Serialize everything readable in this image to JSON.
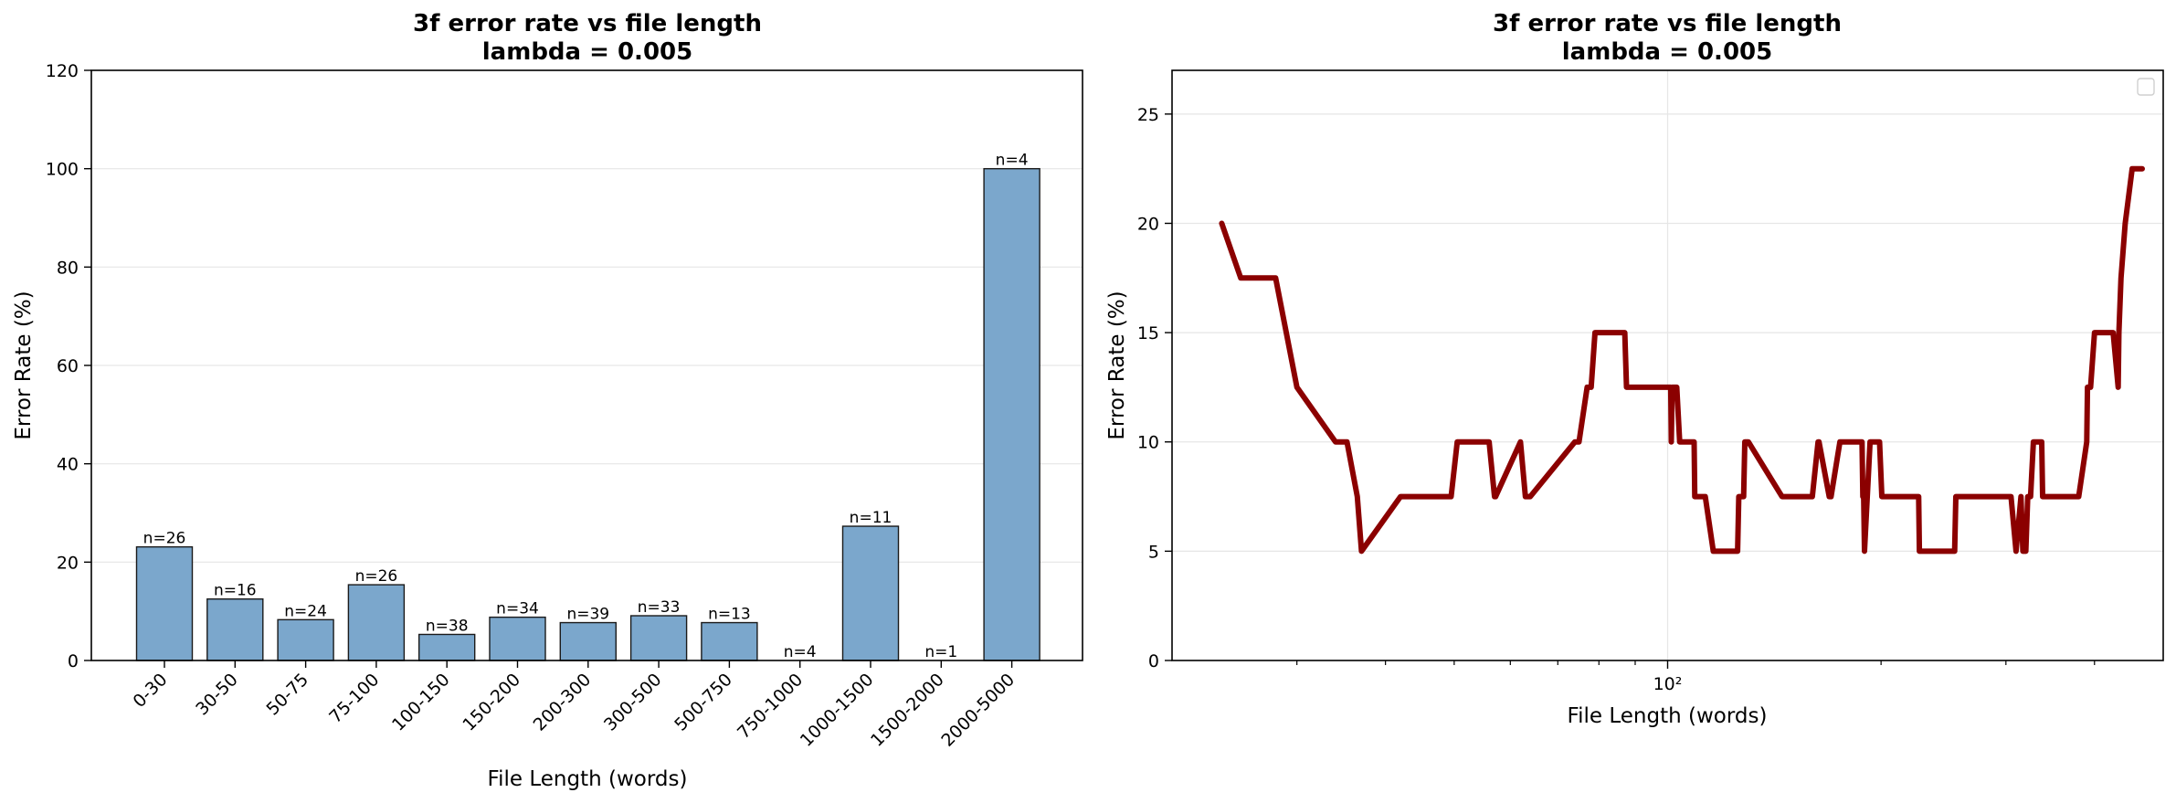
{
  "chart_data": [
    {
      "type": "bar",
      "title": "3f error rate vs file length",
      "subtitle": "lambda = 0.005",
      "xlabel": "File Length (words)",
      "ylabel": "Error Rate (%)",
      "ylim": [
        0,
        120
      ],
      "yticks": [
        "0",
        "20",
        "40",
        "60",
        "80",
        "100",
        "120"
      ],
      "grid": true,
      "bar_color": "#7ba7cc",
      "edge_color": "#1a1a1a",
      "categories": [
        "0-30",
        "30-50",
        "50-75",
        "75-100",
        "100-150",
        "150-200",
        "200-300",
        "300-500",
        "500-750",
        "750-1000",
        "1000-1500",
        "1500-2000",
        "2000-5000"
      ],
      "values": [
        23.1,
        12.5,
        8.3,
        15.4,
        5.3,
        8.8,
        7.7,
        9.1,
        7.7,
        0,
        27.3,
        0,
        100
      ],
      "annotations": [
        "n=26",
        "n=16",
        "n=24",
        "n=26",
        "n=38",
        "n=34",
        "n=39",
        "n=33",
        "n=13",
        "n=4",
        "n=11",
        "n=1",
        "n=4"
      ]
    },
    {
      "type": "line",
      "title": "3f error rate vs file length",
      "subtitle": "lambda = 0.005",
      "xlabel": "File Length (words)",
      "ylabel": "Error Rate (%)",
      "xscale": "log",
      "xlim": [
        20,
        500
      ],
      "ylim": [
        0,
        27
      ],
      "xtick_label": "10²",
      "yticks": [
        "0",
        "5",
        "10",
        "15",
        "20",
        "25"
      ],
      "grid": true,
      "legend": "top-right (empty)",
      "line_color": "#8b0000",
      "x": [
        23.5,
        25,
        28,
        30,
        34,
        35,
        35.3,
        36.5,
        37,
        42,
        43,
        47,
        47.5,
        48,
        49,
        49.5,
        50.5,
        51,
        52,
        53.5,
        56,
        57,
        57.2,
        62,
        63,
        63.2,
        64,
        74,
        75,
        77,
        78,
        79,
        80,
        86,
        86.2,
        87,
        87.5,
        101,
        101.2,
        101.5,
        103,
        104,
        108,
        109,
        109.2,
        113,
        116,
        116.2,
        118,
        125,
        125.5,
        126,
        128,
        128.5,
        130,
        145,
        146,
        160,
        163,
        163.5,
        169,
        170,
        175,
        176,
        188,
        188.5,
        189,
        189.5,
        193,
        197,
        198.5,
        199,
        200.5,
        218,
        222,
        226,
        226.5,
        254,
        255,
        305,
        310,
        315,
        317,
        320,
        322,
        325,
        328,
        331,
        333,
        337,
        338,
        380,
        390,
        391,
        395,
        400,
        420,
        425,
        432,
        433,
        436,
        442,
        452,
        467
      ],
      "y": [
        20,
        17.5,
        17.5,
        12.5,
        10,
        10,
        10,
        7.5,
        5,
        7.5,
        7.5,
        7.5,
        7.5,
        7.5,
        7.5,
        7.5,
        10,
        10,
        10,
        10,
        10,
        7.5,
        7.5,
        10,
        7.5,
        7.5,
        7.5,
        10,
        10,
        12.5,
        12.5,
        15,
        15,
        15,
        15,
        15,
        12.5,
        12.5,
        10,
        12.5,
        12.5,
        10,
        10,
        10,
        7.5,
        7.5,
        5,
        5,
        5,
        5,
        5,
        7.5,
        7.5,
        10,
        10,
        7.5,
        7.5,
        7.5,
        10,
        10,
        7.5,
        7.5,
        10,
        10,
        10,
        7.5,
        7.5,
        5,
        10,
        10,
        10,
        10,
        7.5,
        7.5,
        7.5,
        7.5,
        5,
        5,
        7.5,
        7.5,
        5,
        7.5,
        5,
        5,
        7.5,
        7.5,
        10,
        10,
        10,
        10,
        7.5,
        7.5,
        10,
        12.5,
        12.5,
        15,
        15,
        15,
        12.5,
        15,
        17.5,
        20,
        22.5,
        22.5
      ]
    }
  ]
}
